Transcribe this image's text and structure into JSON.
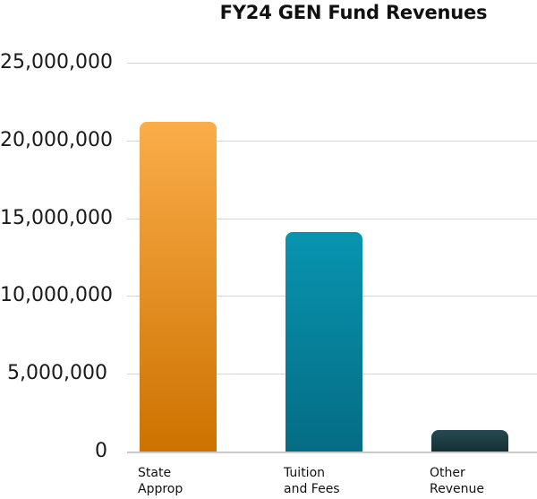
{
  "chart_data": {
    "type": "bar",
    "title": "FY24 GEN Fund Revenues",
    "xlabel": "",
    "ylabel": "",
    "categories": [
      "State\nApprop",
      "Tuition\nand Fees",
      "Other\nRevenue"
    ],
    "values": [
      21200000,
      14100000,
      1400000
    ],
    "ylim": [
      0,
      25000000
    ],
    "yticks": [
      0,
      5000000,
      10000000,
      15000000,
      20000000,
      25000000
    ],
    "ytick_labels": [
      "0",
      "5,000,000",
      "10,000,000",
      "15,000,000",
      "20,000,000",
      "25,000,000"
    ],
    "grid": true,
    "legend": null,
    "colors": [
      {
        "top": "#fbad4a",
        "bottom": "#cc7200"
      },
      {
        "top": "#0894b0",
        "bottom": "#066c84"
      },
      {
        "top": "#264a52",
        "bottom": "#142f33"
      }
    ]
  }
}
